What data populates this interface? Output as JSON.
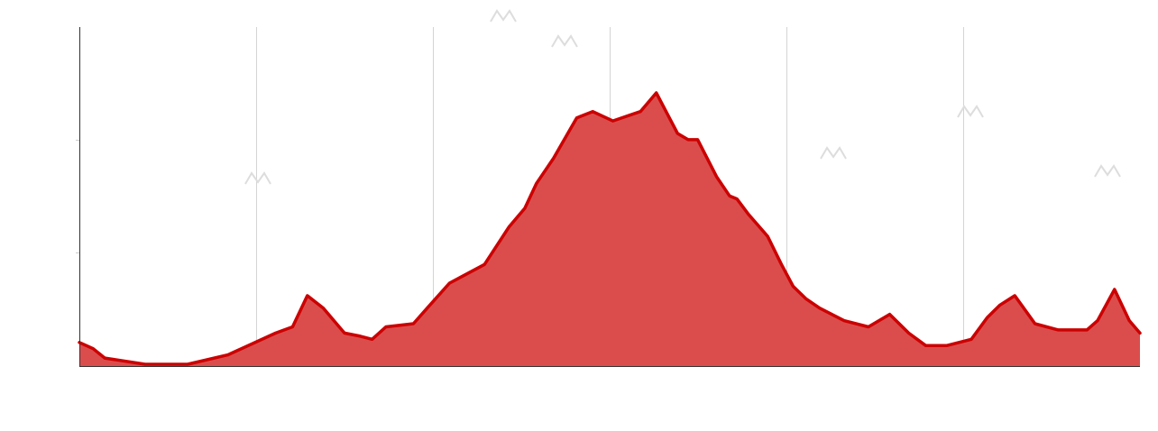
{
  "colors": {
    "fill": "#db4d4d",
    "line": "#cc0000",
    "grid": "#d4d4d4",
    "axis": "#333333",
    "peak_marker": "#dddddd"
  },
  "chart_data": {
    "type": "area",
    "title": "",
    "xlabel": "",
    "ylabel": "",
    "grid": {
      "vertical": true,
      "horizontal": false,
      "x_divisions": 6,
      "y_divisions": 3
    },
    "xlim": [
      0,
      100
    ],
    "ylim": [
      0,
      100
    ],
    "series": [
      {
        "x": [
          0,
          1.3,
          2.4,
          6.2,
          10.2,
          14.0,
          18.5,
          20.1,
          21.5,
          23.0,
          25.0,
          26.5,
          27.6,
          28.9,
          31.5,
          32.8,
          34.9,
          38.2,
          40.5,
          42.0,
          43.1,
          44.7,
          46.9,
          48.4,
          50.3,
          52.9,
          54.4,
          56.4,
          57.4,
          58.3,
          60.1,
          61.3,
          62.0,
          63.1,
          64.9,
          66.2,
          67.3,
          68.5,
          69.8,
          72.1,
          74.4,
          76.4,
          78.2,
          79.8,
          81.8,
          84.1,
          85.6,
          86.8,
          88.2,
          90.1,
          92.3,
          95.0,
          96.0,
          97.6,
          99.0,
          100
        ],
        "y": [
          7,
          5,
          2,
          0,
          0,
          3,
          10,
          12,
          22,
          18,
          10,
          9,
          8,
          12,
          13,
          18,
          26,
          32,
          44,
          50,
          58,
          66,
          79,
          81,
          78,
          81,
          87,
          74,
          72,
          72,
          60,
          54,
          53,
          48,
          41,
          32,
          25,
          21,
          18,
          14,
          12,
          16,
          10,
          6,
          6,
          8,
          15,
          19,
          22,
          13,
          11,
          11,
          14,
          24,
          14,
          10
        ]
      }
    ]
  }
}
